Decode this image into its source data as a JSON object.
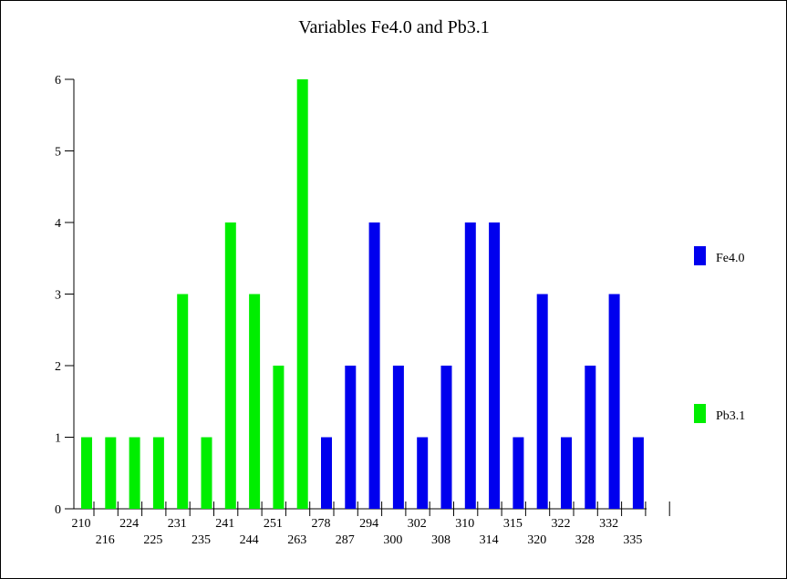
{
  "chart_data": {
    "type": "bar",
    "title": "Variables Fe4.0 and Pb3.1",
    "xlabel": "",
    "ylabel": "",
    "ylim": [
      0,
      6
    ],
    "yticks": [
      0,
      1,
      2,
      3,
      4,
      5,
      6
    ],
    "legend_placement": "right",
    "grid": false,
    "x_tick_labels": [
      "210",
      "216",
      "224",
      "225",
      "231",
      "235",
      "241",
      "244",
      "251",
      "263",
      "278",
      "287",
      "294",
      "300",
      "302",
      "308",
      "310",
      "314",
      "315",
      "320",
      "322",
      "328",
      "332",
      "335"
    ],
    "series": [
      {
        "name": "Fe4.0",
        "color": "#0000ee",
        "values": [
          1,
          2,
          4,
          2,
          1,
          2,
          4,
          4,
          1,
          3,
          1,
          2,
          3,
          1
        ]
      },
      {
        "name": "Pb3.1",
        "color": "#00ee00",
        "values": [
          1,
          1,
          1,
          1,
          3,
          1,
          4,
          3,
          2,
          6
        ]
      }
    ]
  }
}
